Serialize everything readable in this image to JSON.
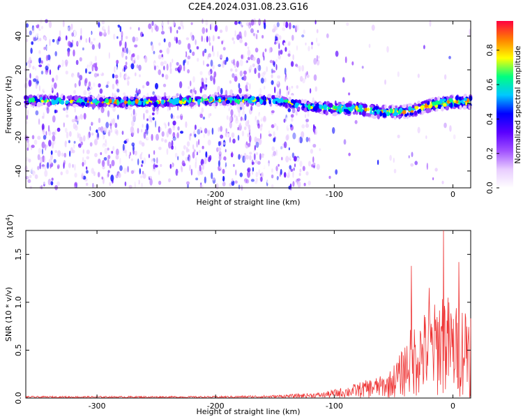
{
  "title": "C2E4.2024.031.08.23.G16",
  "chart_data": [
    {
      "type": "heatmap",
      "title": "C2E4.2024.031.08.23.G16",
      "xlabel": "Height of straight line (km)",
      "ylabel": "Frequency (Hz)",
      "xlim": [
        -360,
        15
      ],
      "ylim": [
        -50,
        49
      ],
      "xticks": [
        -300,
        -200,
        -100,
        0
      ],
      "yticks": [
        -40,
        -20,
        0,
        20,
        40
      ],
      "colorbar": {
        "label": "Normalized spectral amplitude",
        "range": [
          0.0,
          0.97
        ],
        "ticks": [
          0.0,
          0.2,
          0.4,
          0.6,
          0.8
        ],
        "colormap": [
          "#ffffff",
          "#e8ccff",
          "#a050ff",
          "#5a00ff",
          "#0000ff",
          "#00c8ff",
          "#00ff80",
          "#ffff00",
          "#ff8000",
          "#ff0040"
        ]
      },
      "ridge": {
        "x": [
          -355,
          -300,
          -250,
          -200,
          -150,
          -120,
          -100,
          -80,
          -60,
          -40,
          -20,
          0,
          15
        ],
        "y": [
          2,
          1,
          1,
          2,
          2,
          -2,
          -3,
          -3,
          -5,
          -5,
          -1,
          1,
          1
        ]
      },
      "grid": false
    },
    {
      "type": "line",
      "title": "",
      "xlabel": "Height of straight line (km)",
      "ylabel": "SNR (10 * v/v)",
      "yscale_label": "(x10",
      "yscale_exp": "4",
      "yscale_close": ")",
      "xlim": [
        -360,
        15
      ],
      "ylim": [
        0,
        1.75
      ],
      "xticks": [
        -300,
        -200,
        -100,
        0
      ],
      "yticks": [
        "0.0",
        "0.5",
        "1.0",
        "1.5"
      ],
      "color": "#ee3333",
      "envelope": {
        "x": [
          -360,
          -300,
          -200,
          -150,
          -110,
          -90,
          -70,
          -55,
          -45,
          -35,
          -25,
          -15,
          -8,
          0,
          8,
          15
        ],
        "y": [
          0.02,
          0.02,
          0.02,
          0.03,
          0.06,
          0.12,
          0.2,
          0.25,
          0.45,
          0.75,
          0.9,
          1.0,
          1.2,
          0.95,
          1.0,
          1.1
        ]
      },
      "peaks": [
        {
          "x": -8,
          "y": 1.75
        },
        {
          "x": -35,
          "y": 1.38
        },
        {
          "x": 5,
          "y": 1.42
        },
        {
          "x": -20,
          "y": 1.15
        }
      ]
    }
  ]
}
